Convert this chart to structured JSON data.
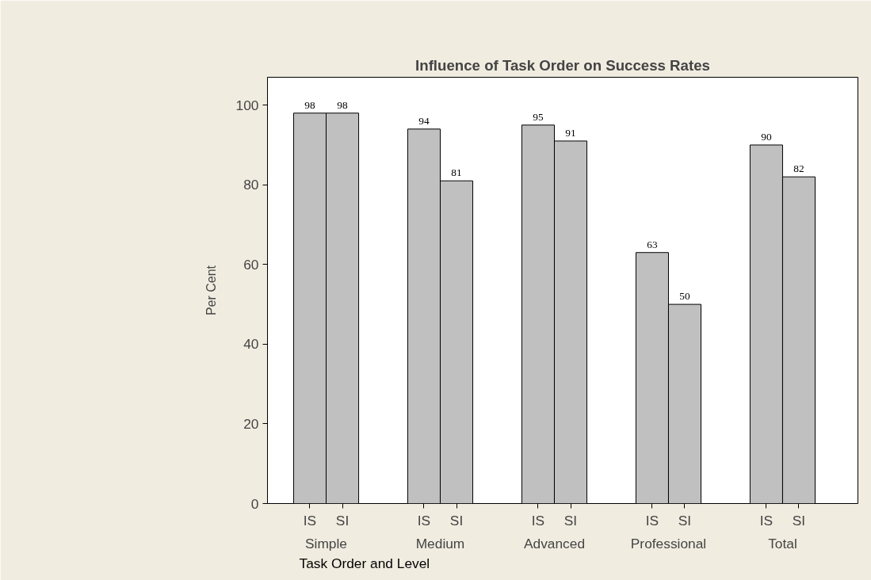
{
  "chart_data": {
    "type": "bar",
    "title": "Influence of Task Order on Success Rates",
    "xlabel": "Task Order and Level",
    "ylabel": "Per Cent",
    "categories": [
      "Simple",
      "Medium",
      "Advanced",
      "Professional",
      "Total"
    ],
    "series": [
      {
        "name": "IS",
        "color": "#c0c0c0",
        "values": [
          98,
          94,
          95,
          63,
          90
        ]
      },
      {
        "name": "SI",
        "color": "#c0c0c0",
        "values": [
          98,
          81,
          91,
          50,
          82
        ]
      }
    ],
    "ylim": [
      0,
      107
    ],
    "yticks": [
      0,
      20,
      40,
      60,
      80,
      100
    ],
    "data_labels": true,
    "grid": false
  }
}
